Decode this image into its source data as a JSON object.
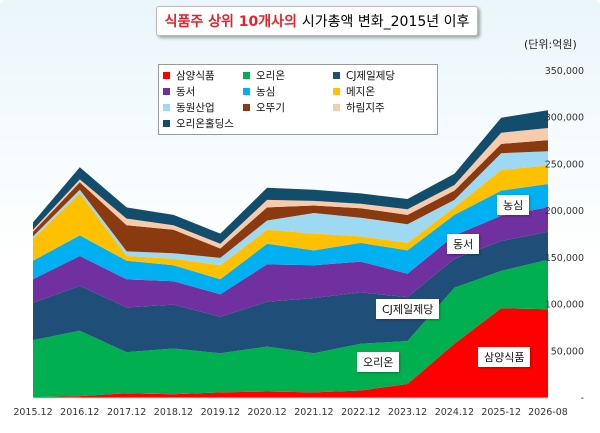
{
  "title": {
    "highlight": "식품주 상위 10개사의",
    "rest": "시가총액 변화_2015년 이후"
  },
  "unit": "(단위:억원)",
  "chart_data": {
    "type": "area",
    "stacked": true,
    "x": [
      "2015.12",
      "2016.12",
      "2017.12",
      "2018.12",
      "2019.12",
      "2020.12",
      "2021.12",
      "2022.12",
      "2023.12",
      "2024.12",
      "2025-12",
      "2026-08"
    ],
    "ylim": [
      0,
      350000
    ],
    "yticks": [
      "-",
      "50,000",
      "100,000",
      "150,000",
      "200,000",
      "250,000",
      "300,000",
      "350,000"
    ],
    "grid": false,
    "legend_position": "top-left",
    "series": [
      {
        "name": "삼양식품",
        "color": "#ff0000",
        "values": [
          1000,
          2000,
          5000,
          4000,
          6000,
          7000,
          6000,
          8000,
          15000,
          58000,
          96000,
          95000
        ]
      },
      {
        "name": "오리온",
        "color": "#00b050",
        "values": [
          61000,
          70000,
          44000,
          49000,
          42000,
          48000,
          42000,
          50000,
          46000,
          60000,
          40000,
          53000
        ]
      },
      {
        "name": "CJ제일제당",
        "color": "#1f4e79",
        "values": [
          40000,
          48000,
          48000,
          47000,
          39000,
          48000,
          59000,
          55000,
          47000,
          31000,
          32000,
          30000
        ]
      },
      {
        "name": "동서",
        "color": "#7030a0",
        "values": [
          25000,
          32000,
          30000,
          25000,
          24000,
          40000,
          35000,
          33000,
          25000,
          25000,
          27000,
          26000
        ]
      },
      {
        "name": "농심",
        "color": "#00b0f0",
        "values": [
          20000,
          22000,
          20000,
          17000,
          16000,
          22000,
          16000,
          20000,
          25000,
          22000,
          27000,
          25000
        ]
      },
      {
        "name": "메지온",
        "color": "#ffc000",
        "values": [
          23000,
          45000,
          5000,
          7000,
          15000,
          15000,
          18000,
          7000,
          8000,
          8000,
          22000,
          20000
        ]
      },
      {
        "name": "동원산업",
        "color": "#9dd9f3",
        "values": [
          3000,
          4000,
          5000,
          6000,
          8000,
          10000,
          22000,
          20000,
          20000,
          8000,
          18000,
          15000
        ]
      },
      {
        "name": "오뚜기",
        "color": "#8b3a0f",
        "values": [
          5000,
          8000,
          28000,
          25000,
          10000,
          14000,
          8000,
          10000,
          10000,
          10000,
          10000,
          12000
        ]
      },
      {
        "name": "하림지주",
        "color": "#f8cbad",
        "values": [
          2000,
          3000,
          7000,
          5000,
          5000,
          8000,
          5000,
          5000,
          6000,
          6000,
          12000,
          13000
        ]
      },
      {
        "name": "오리온홀딩스",
        "color": "#124e6c",
        "values": [
          8000,
          13000,
          12000,
          11000,
          11000,
          13000,
          12000,
          11000,
          11000,
          12000,
          16000,
          19000
        ]
      }
    ]
  },
  "annotations": [
    {
      "text": "농심"
    },
    {
      "text": "동서"
    },
    {
      "text": "CJ제일제당"
    },
    {
      "text": "오리온"
    },
    {
      "text": "삼양식품"
    }
  ]
}
